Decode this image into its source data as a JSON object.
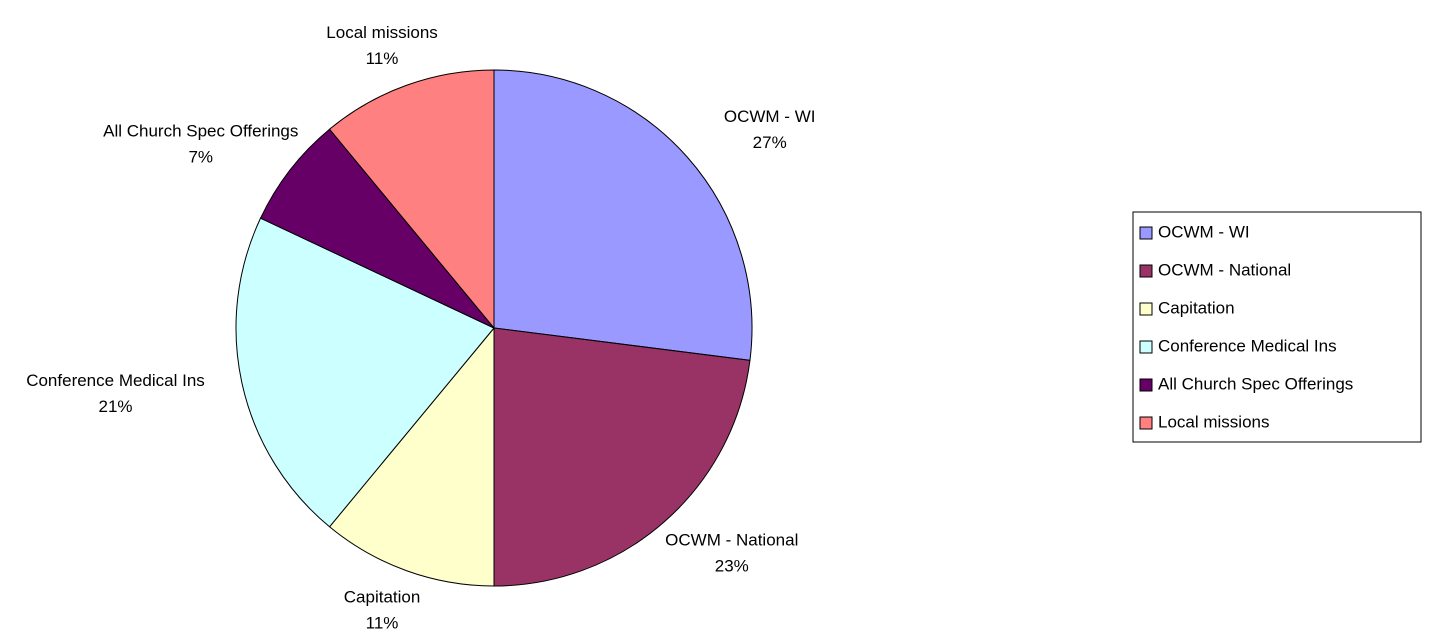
{
  "chart_data": {
    "type": "pie",
    "categories": [
      "OCWM - WI",
      "OCWM - National",
      "Capitation",
      "Conference Medical Ins",
      "All Church Spec Offerings",
      "Local missions"
    ],
    "values": [
      27,
      23,
      11,
      21,
      7,
      11
    ],
    "value_labels": [
      "27%",
      "23%",
      "11%",
      "21%",
      "7%",
      "11%"
    ],
    "colors": [
      "#9999ff",
      "#993366",
      "#ffffcc",
      "#ccffff",
      "#660066",
      "#ff8080"
    ],
    "legend": "right"
  }
}
